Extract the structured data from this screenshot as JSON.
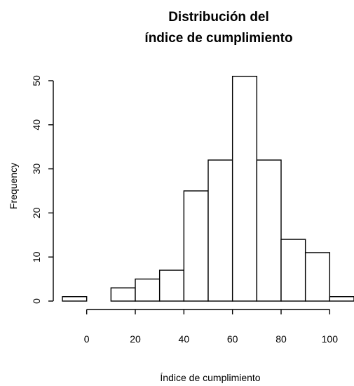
{
  "chart_data": {
    "type": "bar",
    "title_line1": "Distribución del",
    "title_line2": "índice de cumplimiento",
    "xlabel": "Índice de cumplimiento",
    "ylabel": "Frequency",
    "bin_edges": [
      -10,
      0,
      10,
      20,
      30,
      40,
      50,
      60,
      70,
      80,
      90,
      100,
      110
    ],
    "values": [
      1,
      0,
      3,
      5,
      7,
      25,
      32,
      51,
      32,
      14,
      11,
      1
    ],
    "xlim": [
      -10,
      110
    ],
    "ylim": [
      0,
      50
    ],
    "xticks": [
      0,
      20,
      40,
      60,
      80,
      100
    ],
    "yticks": [
      0,
      10,
      20,
      30,
      40,
      50
    ],
    "xtick_labels": [
      "0",
      "20",
      "40",
      "60",
      "80",
      "100"
    ],
    "ytick_labels": [
      "0",
      "10",
      "20",
      "30",
      "40",
      "50"
    ],
    "grid": false,
    "bar_fill": "#ffffff",
    "bar_stroke": "#000000"
  }
}
